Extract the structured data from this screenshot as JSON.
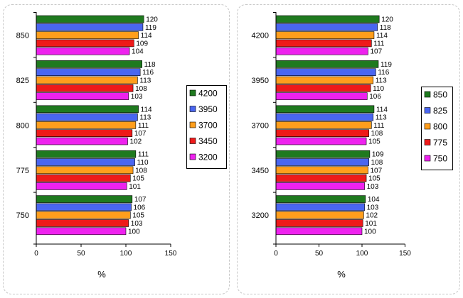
{
  "colors": {
    "green": "#1f7a1f",
    "blue": "#4a66f0",
    "orange": "#ff9e1c",
    "red": "#ee1a1a",
    "magenta": "#ee22ee",
    "panel_border": "#c8c8c8"
  },
  "chart_data": [
    {
      "type": "bar",
      "orientation": "horizontal",
      "categories": [
        "850",
        "825",
        "800",
        "775",
        "750"
      ],
      "series": [
        {
          "name": "4200",
          "color": "#1f7a1f",
          "values": [
            120,
            118,
            114,
            111,
            107
          ]
        },
        {
          "name": "3950",
          "color": "#4a66f0",
          "values": [
            119,
            116,
            113,
            110,
            106
          ]
        },
        {
          "name": "3700",
          "color": "#ff9e1c",
          "values": [
            114,
            113,
            111,
            108,
            105
          ]
        },
        {
          "name": "3450",
          "color": "#ee1a1a",
          "values": [
            109,
            108,
            107,
            105,
            103
          ]
        },
        {
          "name": "3200",
          "color": "#ee22ee",
          "values": [
            104,
            103,
            102,
            101,
            100
          ]
        }
      ],
      "xlabel": "%",
      "ylabel": "",
      "xlim": [
        0,
        150
      ],
      "xticks": [
        "0",
        "50",
        "100",
        "150"
      ],
      "legend_position": "right",
      "grid": false
    },
    {
      "type": "bar",
      "orientation": "horizontal",
      "categories": [
        "4200",
        "3950",
        "3700",
        "3450",
        "3200"
      ],
      "series": [
        {
          "name": "850",
          "color": "#1f7a1f",
          "values": [
            120,
            119,
            114,
            109,
            104
          ]
        },
        {
          "name": "825",
          "color": "#4a66f0",
          "values": [
            118,
            116,
            113,
            108,
            103
          ]
        },
        {
          "name": "800",
          "color": "#ff9e1c",
          "values": [
            114,
            113,
            111,
            107,
            102
          ]
        },
        {
          "name": "775",
          "color": "#ee1a1a",
          "values": [
            111,
            110,
            108,
            105,
            101
          ]
        },
        {
          "name": "750",
          "color": "#ee22ee",
          "values": [
            107,
            106,
            105,
            103,
            100
          ]
        }
      ],
      "xlabel": "%",
      "ylabel": "",
      "xlim": [
        0,
        150
      ],
      "xticks": [
        "0",
        "50",
        "100",
        "150"
      ],
      "legend_position": "right",
      "grid": false
    }
  ]
}
